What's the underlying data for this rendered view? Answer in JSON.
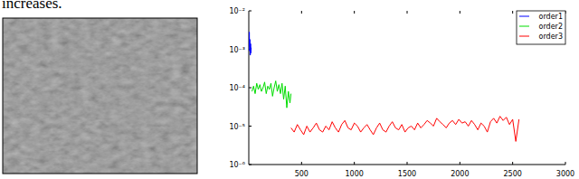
{
  "text": "increases.",
  "chart_data": {
    "type": "line",
    "log": "y",
    "legend": "upper right",
    "xlim": [
      0,
      3000
    ],
    "xticks": [
      500,
      1000,
      1500,
      2000,
      2500,
      3000
    ],
    "ylim": [
      1e-06,
      0.01
    ],
    "yticks": [
      {
        "value": 0.01,
        "label": "10⁻²"
      },
      {
        "value": 0.001,
        "label": "10⁻³"
      },
      {
        "value": 0.0001,
        "label": "10⁻⁴"
      },
      {
        "value": 1e-05,
        "label": "10⁻⁵"
      },
      {
        "value": 1e-06,
        "label": "10⁻⁶"
      }
    ],
    "series": [
      {
        "name": "order1",
        "color": "#0000ff",
        "x": [
          0,
          3,
          5,
          8,
          11,
          14,
          17,
          20,
          23
        ],
        "values": [
          0.0025,
          0.0012,
          0.0028,
          0.0009,
          0.0018,
          0.0007,
          0.0014,
          0.0008,
          0.0011
        ]
      },
      {
        "name": "order2",
        "color": "#00dd00",
        "x": [
          30,
          45,
          60,
          75,
          90,
          105,
          120,
          135,
          150,
          165,
          180,
          195,
          210,
          225,
          240,
          255,
          270,
          285,
          300,
          315,
          330,
          345,
          360,
          375,
          390,
          400
        ],
        "values": [
          8e-05,
          0.00011,
          7e-05,
          0.00013,
          9e-05,
          0.00012,
          8e-05,
          0.0001,
          0.00014,
          7e-05,
          0.00011,
          9e-05,
          0.00013,
          6e-05,
          0.0001,
          0.00015,
          8e-05,
          0.00012,
          7e-05,
          0.00013,
          5e-05,
          0.00011,
          3e-05,
          8e-05,
          4e-05,
          7e-05
        ]
      },
      {
        "name": "order3",
        "color": "#ff0000",
        "x": [
          400,
          430,
          460,
          490,
          520,
          550,
          580,
          610,
          640,
          670,
          700,
          730,
          760,
          790,
          820,
          850,
          880,
          910,
          940,
          970,
          1000,
          1030,
          1060,
          1090,
          1120,
          1150,
          1180,
          1210,
          1240,
          1270,
          1300,
          1330,
          1360,
          1390,
          1420,
          1450,
          1480,
          1510,
          1540,
          1570,
          1600,
          1630,
          1660,
          1690,
          1720,
          1750,
          1780,
          1810,
          1840,
          1870,
          1900,
          1930,
          1960,
          1990,
          2020,
          2050,
          2080,
          2110,
          2140,
          2170,
          2200,
          2230,
          2260,
          2290,
          2320,
          2350,
          2380,
          2410,
          2440,
          2470,
          2500,
          2530,
          2560
        ],
        "values": [
          9e-06,
          7e-06,
          1.1e-05,
          8e-06,
          6e-06,
          1e-05,
          7e-06,
          9e-06,
          1.2e-05,
          8e-06,
          7e-06,
          1e-05,
          8e-06,
          1.3e-05,
          9e-06,
          7e-06,
          1.1e-05,
          1.4e-05,
          9e-06,
          8e-06,
          1.2e-05,
          1e-05,
          7e-06,
          9e-06,
          1.1e-05,
          8e-06,
          6e-06,
          9e-06,
          1.2e-05,
          8e-06,
          7e-06,
          1e-05,
          1.3e-05,
          9e-06,
          8e-06,
          1.1e-05,
          7e-06,
          9e-06,
          1e-05,
          8e-06,
          1.2e-05,
          9e-06,
          1.1e-05,
          1.4e-05,
          1.2e-05,
          1e-05,
          1.6e-05,
          1.3e-05,
          1.1e-05,
          9e-06,
          1.2e-05,
          1.4e-05,
          1.1e-05,
          1.5e-05,
          1.2e-05,
          1.3e-05,
          1e-05,
          1.4e-05,
          1.1e-05,
          8e-06,
          1.2e-05,
          1e-05,
          7e-06,
          1.3e-05,
          1.6e-05,
          1.2e-05,
          1.8e-05,
          1.4e-05,
          1.7e-05,
          1.1e-05,
          1.5e-05,
          4e-06,
          1.5e-05
        ]
      }
    ]
  }
}
